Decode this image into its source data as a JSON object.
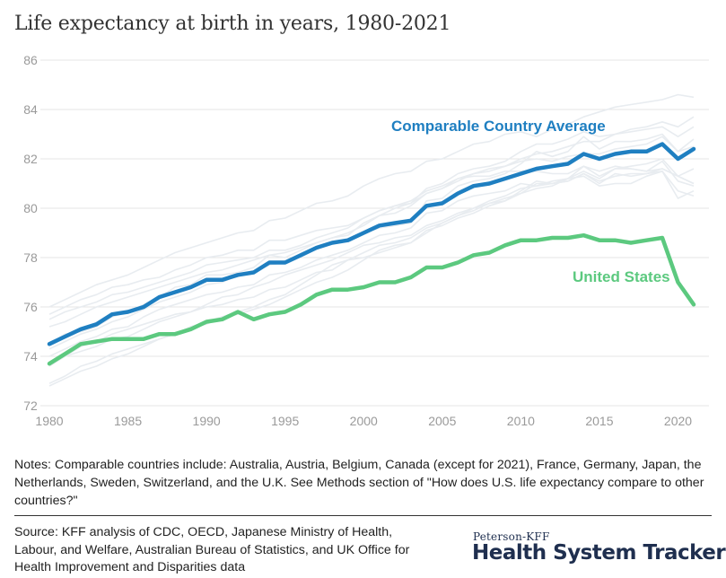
{
  "title": "Life expectancy at birth in years, 1980-2021",
  "notes": "Notes: Comparable countries include: Australia, Austria, Belgium, Canada (except for 2021), France, Germany, Japan, the Netherlands, Sweden, Switzerland, and the U.K. See Methods section of \"How does U.S. life expectancy compare to other countries?\"",
  "source": "Source: KFF analysis of CDC, OECD, Japanese Ministry of Health, Labour, and Welfare, Australian Bureau of Statistics, and UK Office for Health Improvement and Disparities data",
  "brand": {
    "small": "Peterson-KFF",
    "big": "Health System Tracker"
  },
  "colors": {
    "comparable": "#1f7fc1",
    "us": "#5cc97f",
    "background_lines": "#e8ecf0",
    "grid": "#e6e6e6"
  },
  "chart_data": {
    "type": "line",
    "title": "Life expectancy at birth in years, 1980-2021",
    "xlim": [
      1980,
      2021
    ],
    "ylim": [
      72,
      86
    ],
    "x_ticks": [
      "1980",
      "1985",
      "1990",
      "1995",
      "2000",
      "2005",
      "2010",
      "2015",
      "2020"
    ],
    "y_ticks": [
      "72",
      "74",
      "76",
      "78",
      "80",
      "82",
      "84",
      "86"
    ],
    "x": [
      1980,
      1981,
      1982,
      1983,
      1984,
      1985,
      1986,
      1987,
      1988,
      1989,
      1990,
      1991,
      1992,
      1993,
      1994,
      1995,
      1996,
      1997,
      1998,
      1999,
      2000,
      2001,
      2002,
      2003,
      2004,
      2005,
      2006,
      2007,
      2008,
      2009,
      2010,
      2011,
      2012,
      2013,
      2014,
      2015,
      2016,
      2017,
      2018,
      2019,
      2020,
      2021
    ],
    "grid": "horizontal",
    "series": [
      {
        "name": "Comparable Country Average",
        "values": [
          74.5,
          74.8,
          75.1,
          75.3,
          75.7,
          75.8,
          76.0,
          76.4,
          76.6,
          76.8,
          77.1,
          77.1,
          77.3,
          77.4,
          77.8,
          77.8,
          78.1,
          78.4,
          78.6,
          78.7,
          79.0,
          79.3,
          79.4,
          79.5,
          80.1,
          80.2,
          80.6,
          80.9,
          81.0,
          81.2,
          81.4,
          81.6,
          81.7,
          81.8,
          82.2,
          82.0,
          82.2,
          82.3,
          82.3,
          82.6,
          82.0,
          82.4
        ]
      },
      {
        "name": "United States",
        "values": [
          73.7,
          74.1,
          74.5,
          74.6,
          74.7,
          74.7,
          74.7,
          74.9,
          74.9,
          75.1,
          75.4,
          75.5,
          75.8,
          75.5,
          75.7,
          75.8,
          76.1,
          76.5,
          76.7,
          76.7,
          76.8,
          77.0,
          77.0,
          77.2,
          77.6,
          77.6,
          77.8,
          78.1,
          78.2,
          78.5,
          78.7,
          78.7,
          78.8,
          78.8,
          78.9,
          78.7,
          78.7,
          78.6,
          78.7,
          78.8,
          77.0,
          76.1
        ]
      }
    ],
    "background_series": [
      [
        76.0,
        76.3,
        76.6,
        76.9,
        77.1,
        77.3,
        77.6,
        77.9,
        78.2,
        78.4,
        78.6,
        78.8,
        79.0,
        79.1,
        79.5,
        79.6,
        79.9,
        80.2,
        80.3,
        80.5,
        80.9,
        81.2,
        81.4,
        81.5,
        81.9,
        82.0,
        82.3,
        82.6,
        82.7,
        83.0,
        83.1,
        82.9,
        83.2,
        83.4,
        83.7,
        83.9,
        84.1,
        84.2,
        84.3,
        84.4,
        84.6,
        84.5
      ],
      [
        75.5,
        75.8,
        76.0,
        76.2,
        76.5,
        76.6,
        76.8,
        77.0,
        77.2,
        77.4,
        77.7,
        77.8,
        77.9,
        78.0,
        78.3,
        78.3,
        78.5,
        78.8,
        79.0,
        79.2,
        79.6,
        79.9,
        80.1,
        80.3,
        80.7,
        80.9,
        81.2,
        81.4,
        81.5,
        81.7,
        82.0,
        82.2,
        82.3,
        82.5,
        82.7,
        82.7,
        83.0,
        83.1,
        83.2,
        83.3,
        82.9,
        83.3
      ],
      [
        75.7,
        76.0,
        76.3,
        76.5,
        76.8,
        76.9,
        77.1,
        77.2,
        77.5,
        77.7,
        78.0,
        78.1,
        78.3,
        78.3,
        78.7,
        78.7,
        78.9,
        79.1,
        79.2,
        79.3,
        79.6,
        79.9,
        80.1,
        80.2,
        80.8,
        81.0,
        81.4,
        81.6,
        81.7,
        81.9,
        82.3,
        82.6,
        82.6,
        82.8,
        83.1,
        82.9,
        83.0,
        83.2,
        83.3,
        83.5,
        83.3,
        83.7
      ],
      [
        75.2,
        75.4,
        75.7,
        76.0,
        76.2,
        76.4,
        76.6,
        76.8,
        77.0,
        77.2,
        77.4,
        77.5,
        77.7,
        77.9,
        78.1,
        78.2,
        78.4,
        78.6,
        78.8,
        79.0,
        79.3,
        79.7,
        80.0,
        80.2,
        80.6,
        80.8,
        81.1,
        81.4,
        81.6,
        81.7,
        81.9,
        82.0,
        81.9,
        82.1,
        82.2,
        82.2,
        82.4,
        82.5,
        82.6,
        82.9,
        82.3,
        82.8
      ],
      [
        74.3,
        74.6,
        74.9,
        75.1,
        75.4,
        75.6,
        75.9,
        76.2,
        76.4,
        76.6,
        76.9,
        77.0,
        77.3,
        77.4,
        77.7,
        77.8,
        78.1,
        78.4,
        78.6,
        78.7,
        79.0,
        79.2,
        79.3,
        79.4,
        80.3,
        80.4,
        80.9,
        81.1,
        81.2,
        81.4,
        81.8,
        82.3,
        82.1,
        82.3,
        82.9,
        82.4,
        82.7,
        82.7,
        82.8,
        83.0,
        82.3,
        82.5
      ],
      [
        74.0,
        74.3,
        74.6,
        74.8,
        75.1,
        75.2,
        75.6,
        75.9,
        76.1,
        76.3,
        76.5,
        76.6,
        76.8,
        76.9,
        77.3,
        77.4,
        77.6,
        77.9,
        78.1,
        78.3,
        78.6,
        78.9,
        79.0,
        79.2,
        79.8,
        79.9,
        80.3,
        80.5,
        80.6,
        80.7,
        81.0,
        80.9,
        81.0,
        81.2,
        81.5,
        81.2,
        81.6,
        81.6,
        81.5,
        81.6,
        81.3,
        81.0
      ],
      [
        72.8,
        73.1,
        73.4,
        73.6,
        73.9,
        74.1,
        74.4,
        74.7,
        74.9,
        75.2,
        75.4,
        75.6,
        75.8,
        76.0,
        76.3,
        76.5,
        76.9,
        77.3,
        77.7,
        77.9,
        78.2,
        78.5,
        78.6,
        78.8,
        79.2,
        79.4,
        79.7,
        79.9,
        80.2,
        80.4,
        80.6,
        81.0,
        81.0,
        81.1,
        81.4,
        81.0,
        81.4,
        81.3,
        81.4,
        81.5,
        80.4,
        80.7
      ],
      [
        74.5,
        74.9,
        75.0,
        75.2,
        75.6,
        75.8,
        76.1,
        76.4,
        76.8,
        76.9,
        77.3,
        77.3,
        77.4,
        77.6,
        78.1,
        78.0,
        78.3,
        78.6,
        78.8,
        78.9,
        79.4,
        79.7,
        79.8,
        80.1,
        80.6,
        80.8,
        81.2,
        81.3,
        81.3,
        81.5,
        81.5,
        81.5,
        81.4,
        81.4,
        81.7,
        81.5,
        81.7,
        81.6,
        81.5,
        81.9,
        81.1,
        80.9
      ],
      [
        73.7,
        74.0,
        74.4,
        74.6,
        74.9,
        75.1,
        75.3,
        75.5,
        75.7,
        75.8,
        76.1,
        76.4,
        76.5,
        76.8,
        77.0,
        77.3,
        77.5,
        77.7,
        77.9,
        78.2,
        78.5,
        78.6,
        78.8,
        78.9,
        79.3,
        79.5,
        79.8,
        80.0,
        80.3,
        80.5,
        80.8,
        80.9,
        81.1,
        81.2,
        81.7,
        81.3,
        81.6,
        81.7,
        81.8,
        82.0,
        81.3,
        81.6
      ],
      [
        72.9,
        73.2,
        73.6,
        73.8,
        74.1,
        74.3,
        74.5,
        74.7,
        74.9,
        75.2,
        75.3,
        75.6,
        75.7,
        75.9,
        76.1,
        76.4,
        76.7,
        77.0,
        77.2,
        77.5,
        77.9,
        78.3,
        78.5,
        78.6,
        79.1,
        79.3,
        79.6,
        79.8,
        80.1,
        80.3,
        80.7,
        81.1,
        81.0,
        81.1,
        81.4,
        81.1,
        81.3,
        81.4,
        81.4,
        81.6,
        81.3,
        81.0
      ],
      [
        73.6,
        74.0,
        74.2,
        74.4,
        74.7,
        74.8,
        75.1,
        75.4,
        75.6,
        75.8,
        76.0,
        76.1,
        76.3,
        76.4,
        76.7,
        76.8,
        77.1,
        77.4,
        77.5,
        77.9,
        78.0,
        78.2,
        78.4,
        78.6,
        79.0,
        79.4,
        79.7,
        80.0,
        80.2,
        80.3,
        80.6,
        80.8,
        80.9,
        81.2,
        81.3,
        80.9,
        81.0,
        81.0,
        81.3,
        81.5,
        80.7,
        80.5
      ]
    ]
  }
}
